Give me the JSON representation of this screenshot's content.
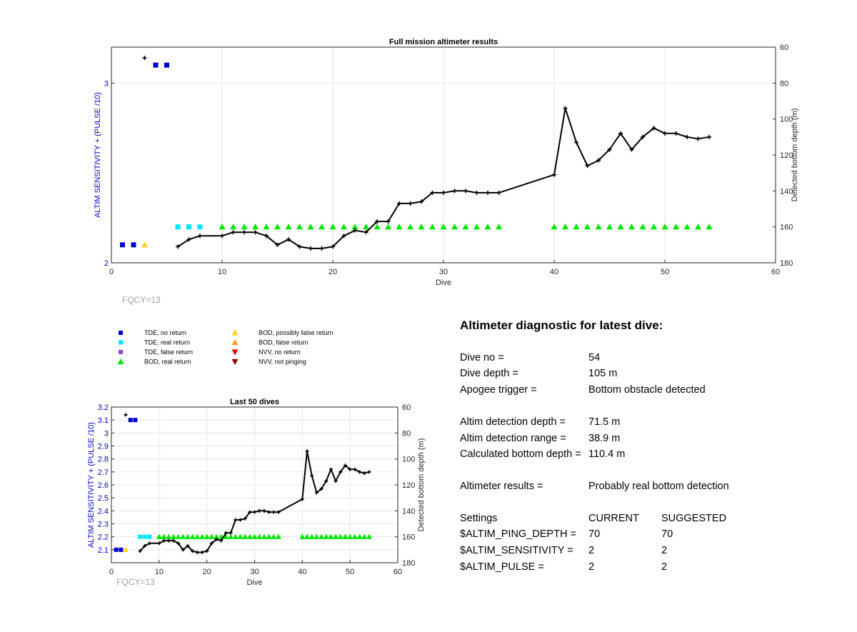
{
  "chart_data": [
    {
      "type": "scatter",
      "title": "Full mission altimeter results",
      "xlabel": "Dive",
      "ylabel_left": "ALTIM SENSITIVITY + (PULSE /10)",
      "ylabel_right": "Detected bottom depth (m)",
      "xlim": [
        0,
        60
      ],
      "ylim_left": [
        2,
        3.2
      ],
      "ylim_right": [
        60,
        180
      ],
      "right_axis_reversed": true,
      "grid": true,
      "x_ticks": [
        "0",
        "10",
        "20",
        "30",
        "40",
        "50",
        "60"
      ],
      "y_ticks_left": [
        "2",
        "3"
      ],
      "y_ticks_right": [
        "60",
        "80",
        "100",
        "120",
        "140",
        "160",
        "180"
      ],
      "annotation": "FQCY=13"
    },
    {
      "type": "scatter",
      "title": "Last 50 dives",
      "xlabel": "Dive",
      "ylabel_left": "ALTIM SENSITIVITY + (PULSE /10)",
      "ylabel_right": "Detected bottom depth (m)",
      "xlim": [
        0,
        60
      ],
      "ylim_left": [
        2,
        3.2
      ],
      "ylim_right": [
        60,
        180
      ],
      "right_axis_reversed": true,
      "grid": true,
      "x_ticks": [
        "0",
        "10",
        "20",
        "30",
        "40",
        "50",
        "60"
      ],
      "y_ticks_left": [
        "2.1",
        "2.2",
        "2.3",
        "2.4",
        "2.5",
        "2.6",
        "2.7",
        "2.8",
        "2.9",
        "3",
        "3.1",
        "3.2"
      ],
      "y_ticks_right": [
        "60",
        "80",
        "100",
        "120",
        "140",
        "160",
        "180"
      ],
      "annotation": "FQCY=13"
    }
  ],
  "series_data": {
    "bottom_depth": {
      "color": "#000000",
      "x": [
        3,
        6,
        7,
        8,
        10,
        11,
        12,
        13,
        14,
        15,
        16,
        17,
        18,
        19,
        20,
        21,
        22,
        23,
        24,
        25,
        26,
        27,
        28,
        29,
        30,
        31,
        32,
        33,
        34,
        35,
        40,
        41,
        42,
        43,
        44,
        45,
        46,
        47,
        48,
        49,
        50,
        51,
        52,
        53,
        54
      ],
      "y": [
        66,
        171,
        167,
        165,
        165,
        163,
        163,
        163,
        165,
        170,
        167,
        171,
        172,
        172,
        171,
        165,
        162,
        163,
        157,
        157,
        147,
        147,
        146,
        141,
        141,
        140,
        140,
        141,
        141,
        141,
        131,
        94,
        113,
        126,
        123,
        117,
        108,
        117,
        110,
        105,
        108,
        108,
        110,
        111,
        110
      ]
    },
    "tde_no_return": {
      "color": "#0000c8",
      "x": [
        1,
        2,
        4,
        5
      ],
      "y": [
        2.1,
        2.1,
        3.1,
        3.1
      ]
    },
    "tde_real_return": {
      "color": "#00e6ff",
      "x": [
        6,
        7,
        8
      ],
      "y": [
        2.2,
        2.2,
        2.2
      ]
    },
    "bod_possibly_false": {
      "color": "#ffd21e",
      "x": [
        3
      ],
      "y": [
        2.1
      ]
    },
    "bod_real_return": {
      "color": "#00e600",
      "x": [
        10,
        11,
        12,
        13,
        14,
        15,
        16,
        17,
        18,
        19,
        20,
        21,
        22,
        23,
        24,
        25,
        26,
        27,
        28,
        29,
        30,
        31,
        32,
        33,
        34,
        35,
        40,
        41,
        42,
        43,
        44,
        45,
        46,
        47,
        48,
        49,
        50,
        51,
        52,
        53,
        54
      ],
      "y": [
        2.2,
        2.2,
        2.2,
        2.2,
        2.2,
        2.2,
        2.2,
        2.2,
        2.2,
        2.2,
        2.2,
        2.2,
        2.2,
        2.2,
        2.2,
        2.2,
        2.2,
        2.2,
        2.2,
        2.2,
        2.2,
        2.2,
        2.2,
        2.2,
        2.2,
        2.2,
        2.2,
        2.2,
        2.2,
        2.2,
        2.2,
        2.2,
        2.2,
        2.2,
        2.2,
        2.2,
        2.2,
        2.2,
        2.2,
        2.2,
        2.2
      ]
    }
  },
  "legend": [
    {
      "label": "TDE, no return",
      "marker": "square",
      "color": "#0000c8"
    },
    {
      "label": "TDE, real return",
      "marker": "square",
      "color": "#00e6ff"
    },
    {
      "label": "TDE, false return",
      "marker": "square",
      "color": "#8c46c8"
    },
    {
      "label": "BOD, real return",
      "marker": "triangle-up",
      "color": "#00e600"
    },
    {
      "label": "BOD, possibly false return",
      "marker": "triangle-up",
      "color": "#ffd21e"
    },
    {
      "label": "BOD, false return",
      "marker": "triangle-up",
      "color": "#ff9b1e"
    },
    {
      "label": "NVV, no return",
      "marker": "triangle-down",
      "color": "#e60000"
    },
    {
      "label": "NVV, not pinging",
      "marker": "triangle-down",
      "color": "#8c0000"
    }
  ],
  "diagnostic": {
    "title": "Altimeter diagnostic for latest dive:",
    "rows": [
      {
        "label": "Dive no =",
        "value": "54"
      },
      {
        "label": "Dive depth =",
        "value": "105 m"
      },
      {
        "label": "Apogee trigger =",
        "value": "Bottom obstacle detected"
      },
      {
        "label": "Altim detection depth =",
        "value": "71.5 m"
      },
      {
        "label": "Altim detection range =",
        "value": "38.9 m"
      },
      {
        "label": "Calculated bottom depth =",
        "value": "110.4 m"
      },
      {
        "label": "Altimeter results =",
        "value": "Probably real bottom detection"
      }
    ],
    "settings_header": {
      "label": "Settings",
      "current": "CURRENT",
      "suggested": "SUGGESTED"
    },
    "settings": [
      {
        "label": "$ALTIM_PING_DEPTH =",
        "current": "70",
        "suggested": "70"
      },
      {
        "label": "$ALTIM_SENSITIVITY =",
        "current": "2",
        "suggested": "2"
      },
      {
        "label": "$ALTIM_PULSE =",
        "current": "2",
        "suggested": "2"
      }
    ]
  }
}
